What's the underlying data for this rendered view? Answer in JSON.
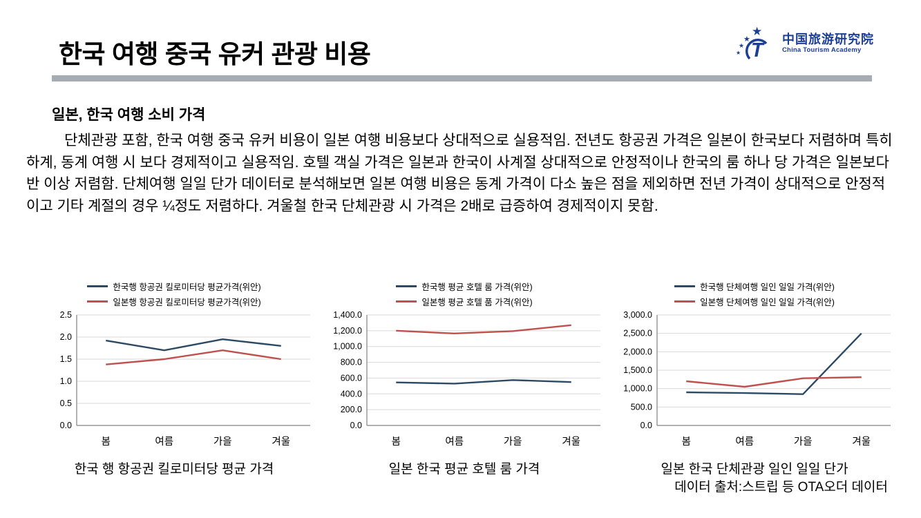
{
  "slide": {
    "title": "한국 여행 중국 유커 관광 비용",
    "subtitle": "일본, 한국 여행 소비 가격",
    "body": "단체관광 포함, 한국 여행 중국 유커 비용이 일본 여행 비용보다 상대적으로 실용적임. 전년도 항공권 가격은 일본이 한국보다 저렴하며 특히 하계, 동계 여행 시 보다 경제적이고 실용적임. 호텔 객실 가격은 일본과 한국이 사계절 상대적으로 안정적이나 한국의 룸 하나 당 가격은 일본보다 반 이상 저렴함. 단체여행 일일 단가 데이터로 분석해보면 일본 여행 비용은 동계 가격이 다소 높은 점을 제외하면 전년 가격이 상대적으로 안정적이고 기타 계절의 경우 ¼정도 저렴하다. 겨울철 한국 단체관광 시 가격은 2배로 급증하여 경제적이지 못함.",
    "source": "데이터 출처:스트립 등 OTA오더 데이터",
    "bar_color": "#a6acb4"
  },
  "logo": {
    "org_cn": "中国旅游研究院",
    "org_en": "China Tourism Academy",
    "color": "#1c3e95"
  },
  "chart_style": {
    "grid_color": "#d9d9d9",
    "axis_color": "#808080",
    "series_navy": "#2c4a64",
    "series_red": "#c0504d"
  },
  "chart_data": [
    {
      "type": "line",
      "title": "한국 행 항공권 킬로미터당 평균 가격",
      "categories": [
        "봄",
        "여름",
        "가을",
        "겨울"
      ],
      "series": [
        {
          "name": "한국행 항공권 킬로미터당 평균가격(위안)",
          "color": "#2c4a64",
          "values": [
            1.92,
            1.7,
            1.95,
            1.8
          ]
        },
        {
          "name": "일본행 항공권 킬로미터당 평균가격(위안)",
          "color": "#c0504d",
          "values": [
            1.38,
            1.5,
            1.7,
            1.5
          ]
        }
      ],
      "xlabel": "",
      "ylabel": "",
      "ylim": [
        0,
        2.5
      ],
      "ytick_step": 0.5,
      "grid": true,
      "legend_position": "top"
    },
    {
      "type": "line",
      "title": "일본 한국 평균 호텔 룸 가격",
      "categories": [
        "봄",
        "여름",
        "가을",
        "겨울"
      ],
      "series": [
        {
          "name": "한국행 평균 호텔 룸 가격(위안)",
          "color": "#2c4a64",
          "values": [
            545,
            530,
            575,
            550
          ]
        },
        {
          "name": "일본행 평균 호텔 품 가격(위안)",
          "color": "#c0504d",
          "values": [
            1200,
            1165,
            1195,
            1270
          ]
        }
      ],
      "xlabel": "",
      "ylabel": "",
      "ylim": [
        0,
        1400
      ],
      "ytick_step": 200,
      "grid": true,
      "legend_position": "top"
    },
    {
      "type": "line",
      "title": "일본 한국 단체관광 일인 일일 단가",
      "categories": [
        "봄",
        "여름",
        "가을",
        "겨울"
      ],
      "series": [
        {
          "name": "한국행 단체여행 일인 일일 가격(위안)",
          "color": "#2c4a64",
          "values": [
            900,
            880,
            850,
            2500
          ]
        },
        {
          "name": "일본행 단체여행 일인 일일 가격(위안)",
          "color": "#c0504d",
          "values": [
            1200,
            1050,
            1280,
            1310
          ]
        }
      ],
      "xlabel": "",
      "ylabel": "",
      "ylim": [
        0,
        3000
      ],
      "ytick_step": 500,
      "grid": true,
      "legend_position": "top"
    }
  ]
}
